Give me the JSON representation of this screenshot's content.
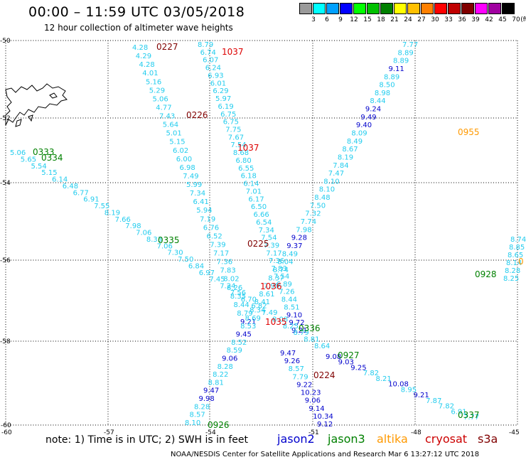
{
  "header": {
    "title": "00:00 – 11:59 UTC 03/05/2018",
    "subtitle": "12 hour collection of altimeter wave heights"
  },
  "legend": {
    "unit": "(ft)",
    "swatches": [
      {
        "label": "3",
        "color": "#9a9a9a"
      },
      {
        "label": "6",
        "color": "#00ffff"
      },
      {
        "label": "9",
        "color": "#00a0ff"
      },
      {
        "label": "12",
        "color": "#0000ff"
      },
      {
        "label": "15",
        "color": "#00ff00"
      },
      {
        "label": "18",
        "color": "#00c000"
      },
      {
        "label": "21",
        "color": "#008000"
      },
      {
        "label": "24",
        "color": "#ffff00"
      },
      {
        "label": "27",
        "color": "#ffc000"
      },
      {
        "label": "30",
        "color": "#ff8000"
      },
      {
        "label": "33",
        "color": "#ff0000"
      },
      {
        "label": "36",
        "color": "#c00000"
      },
      {
        "label": "39",
        "color": "#800000"
      },
      {
        "label": "42",
        "color": "#ff00ff"
      },
      {
        "label": "45",
        "color": "#a000a0"
      },
      {
        "label": "70",
        "color": "#000000"
      }
    ]
  },
  "axes": {
    "lat_labels": [
      "-50",
      "-52",
      "-54",
      "-56",
      "-58",
      "-60"
    ],
    "lon_labels": [
      "-60",
      "-57",
      "-54",
      "-51",
      "-48",
      "-45"
    ]
  },
  "tracks": {
    "a": {
      "times": [
        "0227",
        "0226"
      ],
      "values": [
        "4.28",
        "4.29",
        "4.28",
        "4.01",
        "5.16",
        "5.29",
        "5.06",
        "4.77",
        "7.43",
        "5.64",
        "5.01",
        "5.15",
        "6.02",
        "6.00",
        "6.98",
        "7.49",
        "5.99",
        "7.34",
        "6.41",
        "5.94",
        "7.19",
        "6.76",
        "6.52",
        "7.39",
        "7.17",
        "7.36",
        "7.83",
        "8.02",
        "8.26",
        "8.35",
        "8.44",
        "8.79",
        "9.21"
      ]
    },
    "b": {
      "times": [
        "1037",
        "1037",
        "1036",
        "1035"
      ],
      "values": [
        "8.79",
        "6.74",
        "6.07",
        "6.24",
        "6.93",
        "6.01",
        "6.29",
        "5.97",
        "6.19",
        "6.75",
        "6.75",
        "7.75",
        "7.67",
        "7.54",
        "8.68",
        "6.80",
        "6.55",
        "6.18",
        "6.14",
        "7.01",
        "6.17",
        "6.50",
        "6.66",
        "6.54",
        "7.34",
        "7.54",
        "7.39",
        "7.17",
        "7.36",
        "7.83",
        "7.54",
        "6.89",
        "7.26",
        "8.44",
        "8.51",
        "9.10",
        "9.72",
        "9.21"
      ]
    },
    "c": {
      "times": [
        "0333",
        "0334",
        "0335",
        "0336"
      ],
      "values": [
        "5.06",
        "5.65",
        "5.54",
        "5.15",
        "6.14",
        "6.48",
        "6.77",
        "6.91",
        "7.55",
        "8.19",
        "7.66",
        "7.98",
        "7.06",
        "8.33",
        "7.06",
        "7.30",
        "7.50",
        "6.84",
        "6.97",
        "7.45",
        "7.24",
        "7.56",
        "6.70",
        "6.82",
        "7.49",
        "8.08",
        "8.25",
        "8.79",
        "8.81",
        "8.64"
      ]
    },
    "d": {
      "times": [
        "0955",
        "0928",
        "0927",
        "0926"
      ],
      "values": [
        "7.77",
        "8.89",
        "8.89",
        "9.11",
        "8.89",
        "8.50",
        "8.98",
        "8.44",
        "9.24",
        "9.49",
        "9.40",
        "8.09",
        "8.49",
        "8.67",
        "8.19",
        "7.84",
        "7.47",
        "8.10",
        "8.10",
        "8.48",
        "7.50",
        "7.32",
        "7.74",
        "7.98",
        "9.28",
        "9.37",
        "8.49",
        "8.04",
        "8.74",
        "8.37",
        "7.99",
        "8.61",
        "8.41",
        "8.34",
        "8.69",
        "8.53",
        "9.45",
        "8.52",
        "8.59",
        "9.06",
        "8.28",
        "8.22",
        "8.81",
        "9.47",
        "9.98",
        "8.28",
        "8.57",
        "8.10"
      ]
    },
    "e": {
      "times": [
        "0225",
        "0224"
      ],
      "values": [
        "9.47",
        "9.26",
        "8.57",
        "7.79",
        "9.22",
        "10.23",
        "9.06",
        "9.14",
        "10.34",
        "9.12"
      ]
    },
    "f": {
      "times": [
        "0337"
      ],
      "values": [
        "9.08",
        "9.03",
        "9.25",
        "7.82",
        "8.21",
        "10.08",
        "8.95",
        "9.21",
        "7.87",
        "7.82",
        "6.91",
        "7.77"
      ]
    },
    "g": {
      "values": [
        "8.74",
        "8.85",
        "8.65",
        "8.14",
        "8.28",
        "8.25"
      ],
      "time_fragment": "0"
    }
  },
  "footer": {
    "note": "note:  1) Time is in UTC; 2) SWH is in feet",
    "satellites": [
      {
        "name": "jason2",
        "color": "#0000cc"
      },
      {
        "name": "jason3",
        "color": "#008000"
      },
      {
        "name": "altika",
        "color": "#ff9900"
      },
      {
        "name": "cryosat",
        "color": "#cc0000"
      },
      {
        "name": "s3a",
        "color": "#800000"
      }
    ],
    "credit": "NOAA/NESDIS Center for Satellite Applications and Research    Mar  6 13:27:12 UTC 2018"
  }
}
